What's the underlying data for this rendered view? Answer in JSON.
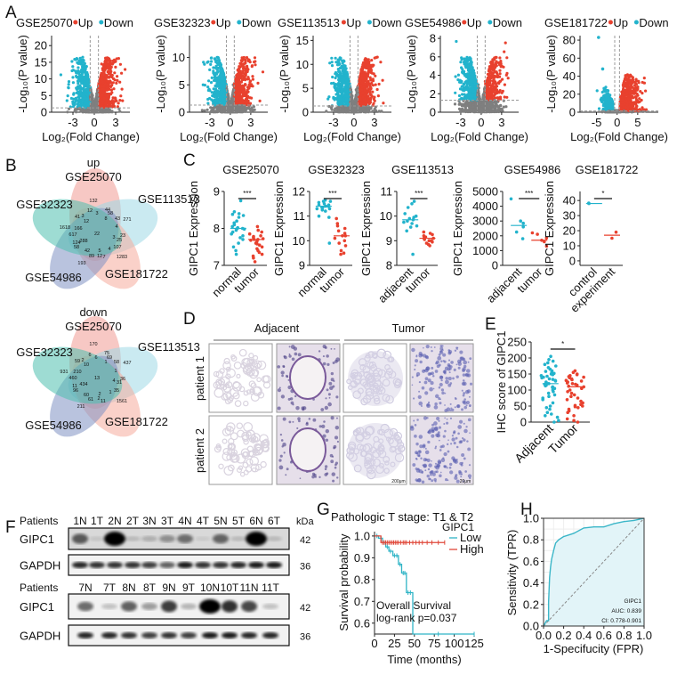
{
  "panel_labels": [
    "A",
    "B",
    "C",
    "D",
    "E",
    "F",
    "G",
    "H"
  ],
  "colors": {
    "up": "#e8412e",
    "down": "#22b3cc",
    "ns": "#7f7f7f",
    "km_low": "#2fb4c6",
    "km_high": "#e0483a",
    "roc": "#3bb6c8",
    "roc_fill": "#e2f4f8"
  },
  "panel_D": {
    "columns": [
      "Adjacent",
      "Tumor"
    ],
    "rows": [
      "patient 1",
      "patient 2"
    ],
    "scale_bars": [
      "200μm",
      "20μm"
    ]
  },
  "chart_data": [
    {
      "type": "scatter",
      "panel": "A",
      "title": "GSE25070",
      "legend": [
        "Up",
        "Down"
      ],
      "xlabel": "Log₂(Fold Change)",
      "ylabel": "-Log₁₀(P value)",
      "xlim": [
        -6,
        5
      ],
      "ylim": [
        0,
        23
      ],
      "xticks": [
        "-3",
        "0",
        "3"
      ],
      "yticks": [
        "0",
        "5",
        "10",
        "15",
        "20"
      ],
      "fc_threshold": 0.58,
      "p_threshold_line": 1.3
    },
    {
      "type": "scatter",
      "panel": "A",
      "title": "GSE32323",
      "legend": [
        "Up",
        "Down"
      ],
      "xlabel": "Log₂(Fold Change)",
      "ylabel": "-Log₁₀(P value)",
      "xlim": [
        -6,
        5.5
      ],
      "ylim": [
        0,
        14
      ],
      "xticks": [
        "-3",
        "0",
        "3"
      ],
      "yticks": [
        "0",
        "5",
        "10"
      ],
      "fc_threshold": 0.58,
      "p_threshold_line": 1.3
    },
    {
      "type": "scatter",
      "panel": "A",
      "title": "GSE113513",
      "legend": [
        "Up",
        "Down"
      ],
      "xlabel": "Log₂(Fold Change)",
      "ylabel": "-Log₁₀(P value)",
      "xlim": [
        -6,
        5.5
      ],
      "ylim": [
        0,
        16
      ],
      "xticks": [
        "-3",
        "0",
        "3"
      ],
      "yticks": [
        "0",
        "5",
        "10",
        "15"
      ],
      "fc_threshold": 0.58,
      "p_threshold_line": 1.3
    },
    {
      "type": "scatter",
      "panel": "A",
      "title": "GSE54986",
      "legend": [
        "Up",
        "Down"
      ],
      "xlabel": "Log₂(Fold Change)",
      "ylabel": "-Log₁₀(P value)",
      "xlim": [
        -6,
        5.5
      ],
      "ylim": [
        0,
        8.3
      ],
      "xticks": [
        "-3",
        "0",
        "3"
      ],
      "yticks": [
        "0",
        "2",
        "4",
        "6",
        "8"
      ],
      "fc_threshold": 0.58,
      "p_threshold_line": 1.3
    },
    {
      "type": "scatter",
      "panel": "A",
      "title": "GSE181722",
      "legend": [
        "Up",
        "Down"
      ],
      "xlabel": "Log₂(Fold Change)",
      "ylabel": "-Log₁₀(P value)",
      "xlim": [
        -9,
        10
      ],
      "ylim": [
        0,
        85
      ],
      "xticks": [
        "-5",
        "0",
        "5"
      ],
      "yticks": [
        "0",
        "20",
        "40",
        "60",
        "80"
      ],
      "fc_threshold": 0.58,
      "p_threshold_line": 1.3
    },
    {
      "type": "venn",
      "panel": "B",
      "title": "up",
      "sets": [
        "GSE25070",
        "GSE113513",
        "GSE181722",
        "GSE54986",
        "GSE32323"
      ],
      "region_counts": [
        "132",
        "12",
        "3",
        "44",
        "58",
        "271",
        "43",
        "8",
        "41",
        "3",
        "12",
        "1618",
        "166",
        "617",
        "22",
        "4",
        "3",
        "23",
        "25",
        "124",
        "288",
        "58",
        "42",
        "5",
        "4",
        "107",
        "89",
        "12",
        "7",
        "1283",
        "193"
      ]
    },
    {
      "type": "venn",
      "panel": "B",
      "title": "down",
      "sets": [
        "GSE25070",
        "GSE113513",
        "GSE181722",
        "GSE54986",
        "GSE32323"
      ],
      "region_counts": [
        "170",
        "6",
        "6",
        "75",
        "69",
        "1",
        "58",
        "437",
        "59",
        "2",
        "10",
        "931",
        "210",
        "460",
        "13",
        "1",
        "4",
        "31",
        "36",
        "11",
        "434",
        "96",
        "60",
        "2",
        "1",
        "35",
        "61",
        "2",
        "11",
        "1561",
        "211"
      ]
    },
    {
      "type": "scatter",
      "panel": "C",
      "title": "GSE25070",
      "ylabel": "GIPC1 Expression",
      "ylim": [
        7,
        9
      ],
      "yticks": [
        "7",
        "8",
        "9"
      ],
      "significance": "***",
      "groups": [
        {
          "name": "normal",
          "median": 8.0,
          "values": [
            8.75,
            8.45,
            8.4,
            8.38,
            8.35,
            8.3,
            8.2,
            8.15,
            8.1,
            8.05,
            8.02,
            8.0,
            8.0,
            7.98,
            7.95,
            7.9,
            7.85,
            7.8,
            7.75,
            7.7,
            7.6,
            7.5,
            7.4,
            7.3
          ]
        },
        {
          "name": "tumor",
          "median": 7.7,
          "values": [
            8.05,
            7.95,
            7.9,
            7.85,
            7.8,
            7.78,
            7.75,
            7.72,
            7.7,
            7.7,
            7.68,
            7.65,
            7.6,
            7.58,
            7.55,
            7.5,
            7.45,
            7.4,
            7.35,
            7.3,
            7.25,
            7.2,
            7.1
          ]
        }
      ]
    },
    {
      "type": "scatter",
      "panel": "C",
      "title": "GSE32323",
      "ylabel": "GIPC1 Expression",
      "ylim": [
        9,
        12
      ],
      "yticks": [
        "9",
        "10",
        "11",
        "12"
      ],
      "significance": "***",
      "groups": [
        {
          "name": "normal",
          "median": 11.4,
          "values": [
            11.65,
            11.6,
            11.6,
            11.55,
            11.5,
            11.45,
            11.45,
            11.4,
            11.4,
            11.35,
            11.35,
            11.3,
            11.3,
            11.25,
            11.2,
            11.0,
            10.95,
            9.9
          ]
        },
        {
          "name": "tumor",
          "median": 10.2,
          "values": [
            10.9,
            10.7,
            10.6,
            10.5,
            10.4,
            10.3,
            10.2,
            10.2,
            10.1,
            10.0,
            9.9,
            9.8,
            9.6,
            9.5,
            9.45
          ]
        }
      ]
    },
    {
      "type": "scatter",
      "panel": "C",
      "title": "GSE113513",
      "ylabel": "GIPC1 Expression",
      "ylim": [
        8,
        11
      ],
      "yticks": [
        "8",
        "9",
        "10",
        "11"
      ],
      "significance": "***",
      "groups": [
        {
          "name": "adjacent",
          "median": 9.85,
          "values": [
            10.6,
            10.5,
            10.35,
            10.1,
            10.0,
            9.95,
            9.9,
            9.85,
            9.8,
            9.75,
            9.7,
            9.6,
            9.55,
            9.4,
            8.45
          ]
        },
        {
          "name": "tumor",
          "median": 9.1,
          "values": [
            9.35,
            9.3,
            9.25,
            9.2,
            9.15,
            9.1,
            9.1,
            9.05,
            9.0,
            9.0,
            8.95,
            8.9,
            8.85,
            8.8
          ]
        }
      ]
    },
    {
      "type": "scatter",
      "panel": "C",
      "title": "GSE54986",
      "ylabel": "GIPC1 Expression",
      "ylim": [
        0,
        5000
      ],
      "yticks": [
        "0",
        "1000",
        "2000",
        "3000",
        "4000",
        "5000"
      ],
      "significance": "***",
      "groups": [
        {
          "name": "adjacent",
          "median": 2700,
          "values": [
            4500,
            3000,
            2850,
            2600,
            2250,
            1800
          ]
        },
        {
          "name": "tumor",
          "median": 1700,
          "values": [
            2200,
            2100,
            1850,
            1700,
            1600,
            1300
          ]
        }
      ]
    },
    {
      "type": "scatter",
      "panel": "C",
      "title": "GSE181722",
      "ylabel": "GIPC1 Expression",
      "ylim": [
        -3,
        46
      ],
      "yticks": [
        "0",
        "10",
        "20",
        "30",
        "40"
      ],
      "significance": "*",
      "groups": [
        {
          "name": "control",
          "median": 38,
          "values": [
            38,
            38.3
          ]
        },
        {
          "name": "experiment",
          "median": 17,
          "values": [
            19,
            15
          ]
        }
      ]
    },
    {
      "type": "scatter",
      "panel": "E",
      "title": "",
      "ylabel": "IHC score of GIPC1",
      "ylim": [
        0,
        250
      ],
      "yticks": [
        "0",
        "50",
        "100",
        "150",
        "200",
        "250"
      ],
      "significance": "*",
      "groups": [
        {
          "name": "Adjacent",
          "median": 120,
          "values": [
            205,
            195,
            190,
            185,
            180,
            175,
            170,
            165,
            160,
            158,
            155,
            152,
            150,
            148,
            145,
            143,
            140,
            138,
            135,
            133,
            130,
            128,
            125,
            123,
            120,
            118,
            115,
            113,
            110,
            108,
            105,
            100,
            95,
            90,
            85,
            80,
            75,
            70,
            60,
            50,
            45,
            40,
            30,
            25,
            20,
            15,
            5,
            0
          ]
        },
        {
          "name": "Tumor",
          "median": 110,
          "values": [
            160,
            155,
            150,
            148,
            145,
            142,
            140,
            138,
            135,
            132,
            130,
            128,
            125,
            122,
            120,
            118,
            115,
            112,
            110,
            105,
            100,
            95,
            90,
            85,
            80,
            75,
            70,
            65,
            60,
            55,
            52,
            50,
            48,
            45,
            40,
            35,
            30,
            20,
            10,
            5,
            0
          ]
        }
      ]
    },
    {
      "type": "table",
      "panel": "F",
      "row_header": "Patients",
      "unit": "kDa",
      "blots": [
        {
          "lanes": [
            "1N",
            "1T",
            "2N",
            "2T",
            "3N",
            "3T",
            "4N",
            "4T",
            "5N",
            "5T",
            "6N",
            "6T"
          ],
          "rows": [
            {
              "protein": "GIPC1",
              "kda": "42",
              "intensity": [
                0.6,
                0.1,
                1,
                0.15,
                0.2,
                0.35,
                0.5,
                0.08,
                0.55,
                0.15,
                1,
                0.15
              ]
            },
            {
              "protein": "GAPDH",
              "kda": "36",
              "intensity": [
                0.85,
                0.8,
                0.8,
                0.8,
                0.75,
                0.6,
                0.9,
                0.8,
                0.8,
                0.85,
                0.9,
                0.9
              ]
            }
          ]
        },
        {
          "lanes": [
            "7N",
            "7T",
            "8N",
            "8T",
            "9N",
            "9T",
            "10N",
            "10T",
            "11N",
            "11T"
          ],
          "rows": [
            {
              "protein": "GIPC1",
              "kda": "42",
              "intensity": [
                0.55,
                0.2,
                0.6,
                0.35,
                0.75,
                0.25,
                1,
                0.8,
                0.7,
                0.2
              ]
            },
            {
              "protein": "GAPDH",
              "kda": "36",
              "intensity": [
                0.85,
                0.85,
                0.8,
                0.75,
                0.8,
                0.75,
                0.9,
                0.9,
                0.85,
                0.85
              ]
            }
          ]
        }
      ]
    },
    {
      "type": "line",
      "panel": "G",
      "title": "Pathologic T stage: T1 & T2",
      "xlabel": "Time (months)",
      "ylabel": "Survival probability",
      "legend_title": "GIPC1",
      "xlim": [
        0,
        125
      ],
      "ylim": [
        0.55,
        1.02
      ],
      "xticks": [
        "0",
        "25",
        "50",
        "75",
        "100",
        "125"
      ],
      "yticks": [
        "0.6",
        "0.7",
        "0.8",
        "0.9",
        "1.0"
      ],
      "annotations": [
        "Overall Survival",
        "log-rank p=0.037"
      ],
      "series": [
        {
          "name": "Low",
          "steps": [
            [
              0,
              1.0
            ],
            [
              5,
              0.99
            ],
            [
              10,
              0.97
            ],
            [
              14,
              0.95
            ],
            [
              18,
              0.93
            ],
            [
              23,
              0.91
            ],
            [
              30,
              0.87
            ],
            [
              34,
              0.83
            ],
            [
              40,
              0.74
            ],
            [
              48,
              0.55
            ],
            [
              125,
              0.55
            ]
          ],
          "censored": [
            3,
            8,
            12,
            16,
            20,
            25,
            28,
            32,
            36,
            38,
            42,
            45,
            80,
            125
          ]
        },
        {
          "name": "High",
          "steps": [
            [
              0,
              1.0
            ],
            [
              8,
              0.97
            ],
            [
              88,
              0.97
            ]
          ],
          "censored": [
            10,
            12,
            14,
            16,
            18,
            20,
            22,
            24,
            26,
            28,
            30,
            33,
            36,
            38,
            40,
            44,
            48,
            52,
            56,
            60,
            66,
            72,
            80,
            88
          ]
        }
      ]
    },
    {
      "type": "line",
      "panel": "H",
      "xlabel": "1-Specifucity (FPR)",
      "ylabel": "Sensitivity (TPR)",
      "xlim": [
        0,
        1
      ],
      "ylim": [
        0,
        1
      ],
      "xticks": [
        "0.0",
        "0.2",
        "0.4",
        "0.6",
        "0.8",
        "1.0"
      ],
      "yticks": [
        "0.0",
        "0.2",
        "0.4",
        "0.6",
        "0.8",
        "1.0"
      ],
      "grid": true,
      "annotations": [
        "GIPC1",
        "AUC: 0.839",
        "CI: 0.778-0.901"
      ],
      "series": [
        {
          "name": "GIPC1",
          "fpr": [
            0,
            0.03,
            0.05,
            0.05,
            0.06,
            0.07,
            0.08,
            0.1,
            0.12,
            0.15,
            0.2,
            0.3,
            0.4,
            0.5,
            0.6,
            0.7,
            0.8,
            0.9,
            1.0
          ],
          "tpr": [
            0,
            0.05,
            0.05,
            0.22,
            0.45,
            0.55,
            0.62,
            0.7,
            0.77,
            0.8,
            0.83,
            0.86,
            0.91,
            0.92,
            0.92,
            0.95,
            0.97,
            0.98,
            1.0
          ]
        }
      ]
    }
  ]
}
